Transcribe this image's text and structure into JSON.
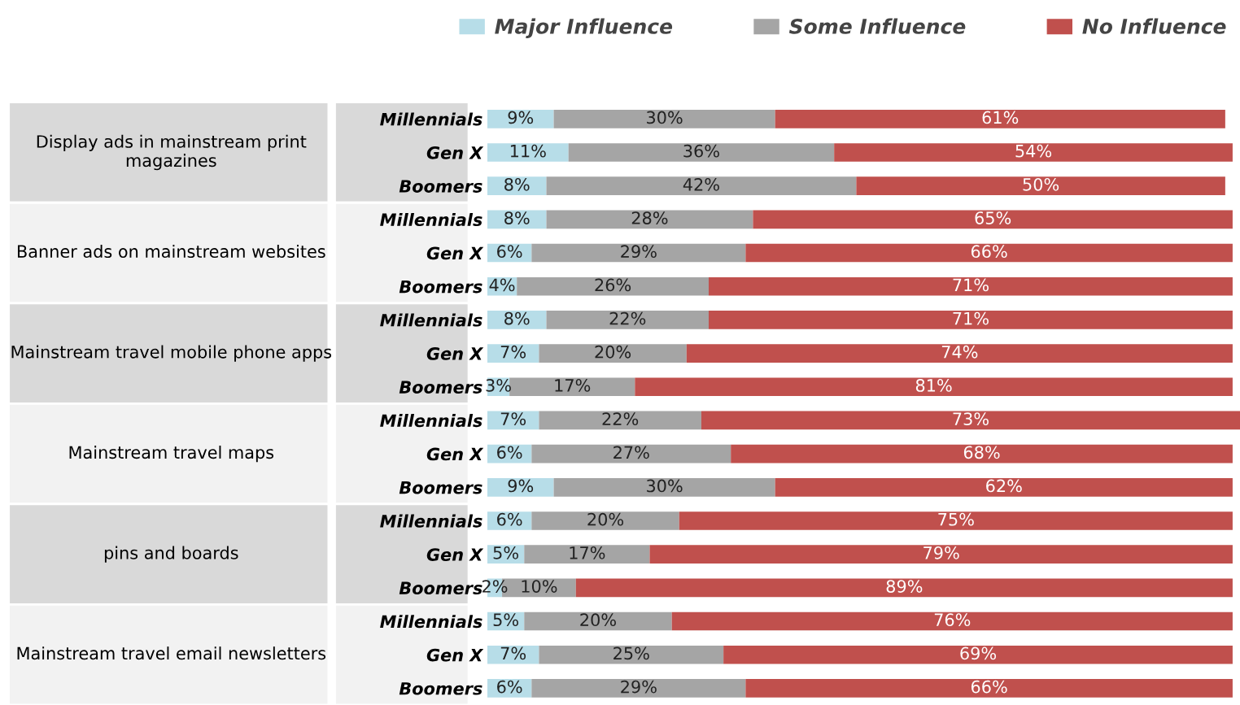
{
  "chart_data": {
    "type": "bar",
    "orientation": "horizontal",
    "stacked": true,
    "legend": "top",
    "grid": false,
    "categories": [
      "Millennials",
      "Gen X",
      "Boomers",
      "Millennials",
      "Gen X",
      "Boomers",
      "Millennials",
      "Gen X",
      "Boomers",
      "Millennials",
      "Gen X",
      "Boomers",
      "Millennials",
      "Gen X",
      "Boomers",
      "Millennials",
      "Gen X",
      "Boomers"
    ],
    "annotations": [
      "Display ads in mainstream print magazines",
      "Banner ads on mainstream websites",
      "Mainstream travel mobile phone apps",
      "Mainstream travel maps",
      "pins and boards",
      "Mainstream travel email newsletters"
    ],
    "series": [
      {
        "name": "Major Influence",
        "color": "#b7dde8",
        "values": [
          9,
          11,
          8,
          8,
          6,
          4,
          8,
          7,
          3,
          7,
          6,
          9,
          6,
          5,
          2,
          5,
          7,
          6
        ],
        "value_labels": [
          "9%",
          "11%",
          "8%",
          "8%",
          "6%",
          "4%",
          "8%",
          "7%",
          "3%",
          "7%",
          "6%",
          "9%",
          "6%",
          "5%",
          "2%",
          "5%",
          "7%",
          "6%"
        ]
      },
      {
        "name": "Some Influence",
        "color": "#a5a5a5",
        "values": [
          30,
          36,
          42,
          28,
          29,
          26,
          22,
          20,
          17,
          22,
          27,
          30,
          20,
          17,
          10,
          20,
          25,
          29
        ],
        "value_labels": [
          "30%",
          "36%",
          "42%",
          "28%",
          "29%",
          "26%",
          "22%",
          "20%",
          "17%",
          "22%",
          "27%",
          "30%",
          "20%",
          "17%",
          "10%",
          "20%",
          "25%",
          "29%"
        ]
      },
      {
        "name": "No Influence",
        "color": "#c0504d",
        "values": [
          61,
          54,
          50,
          65,
          66,
          71,
          71,
          74,
          81,
          73,
          68,
          62,
          75,
          79,
          89,
          76,
          69,
          66
        ],
        "value_labels": [
          "61%",
          "54%",
          "50%",
          "65%",
          "66%",
          "71%",
          "71%",
          "74%",
          "81%",
          "73%",
          "68%",
          "62%",
          "75%",
          "79%",
          "89%",
          "76%",
          "69%",
          "66%"
        ]
      }
    ]
  }
}
